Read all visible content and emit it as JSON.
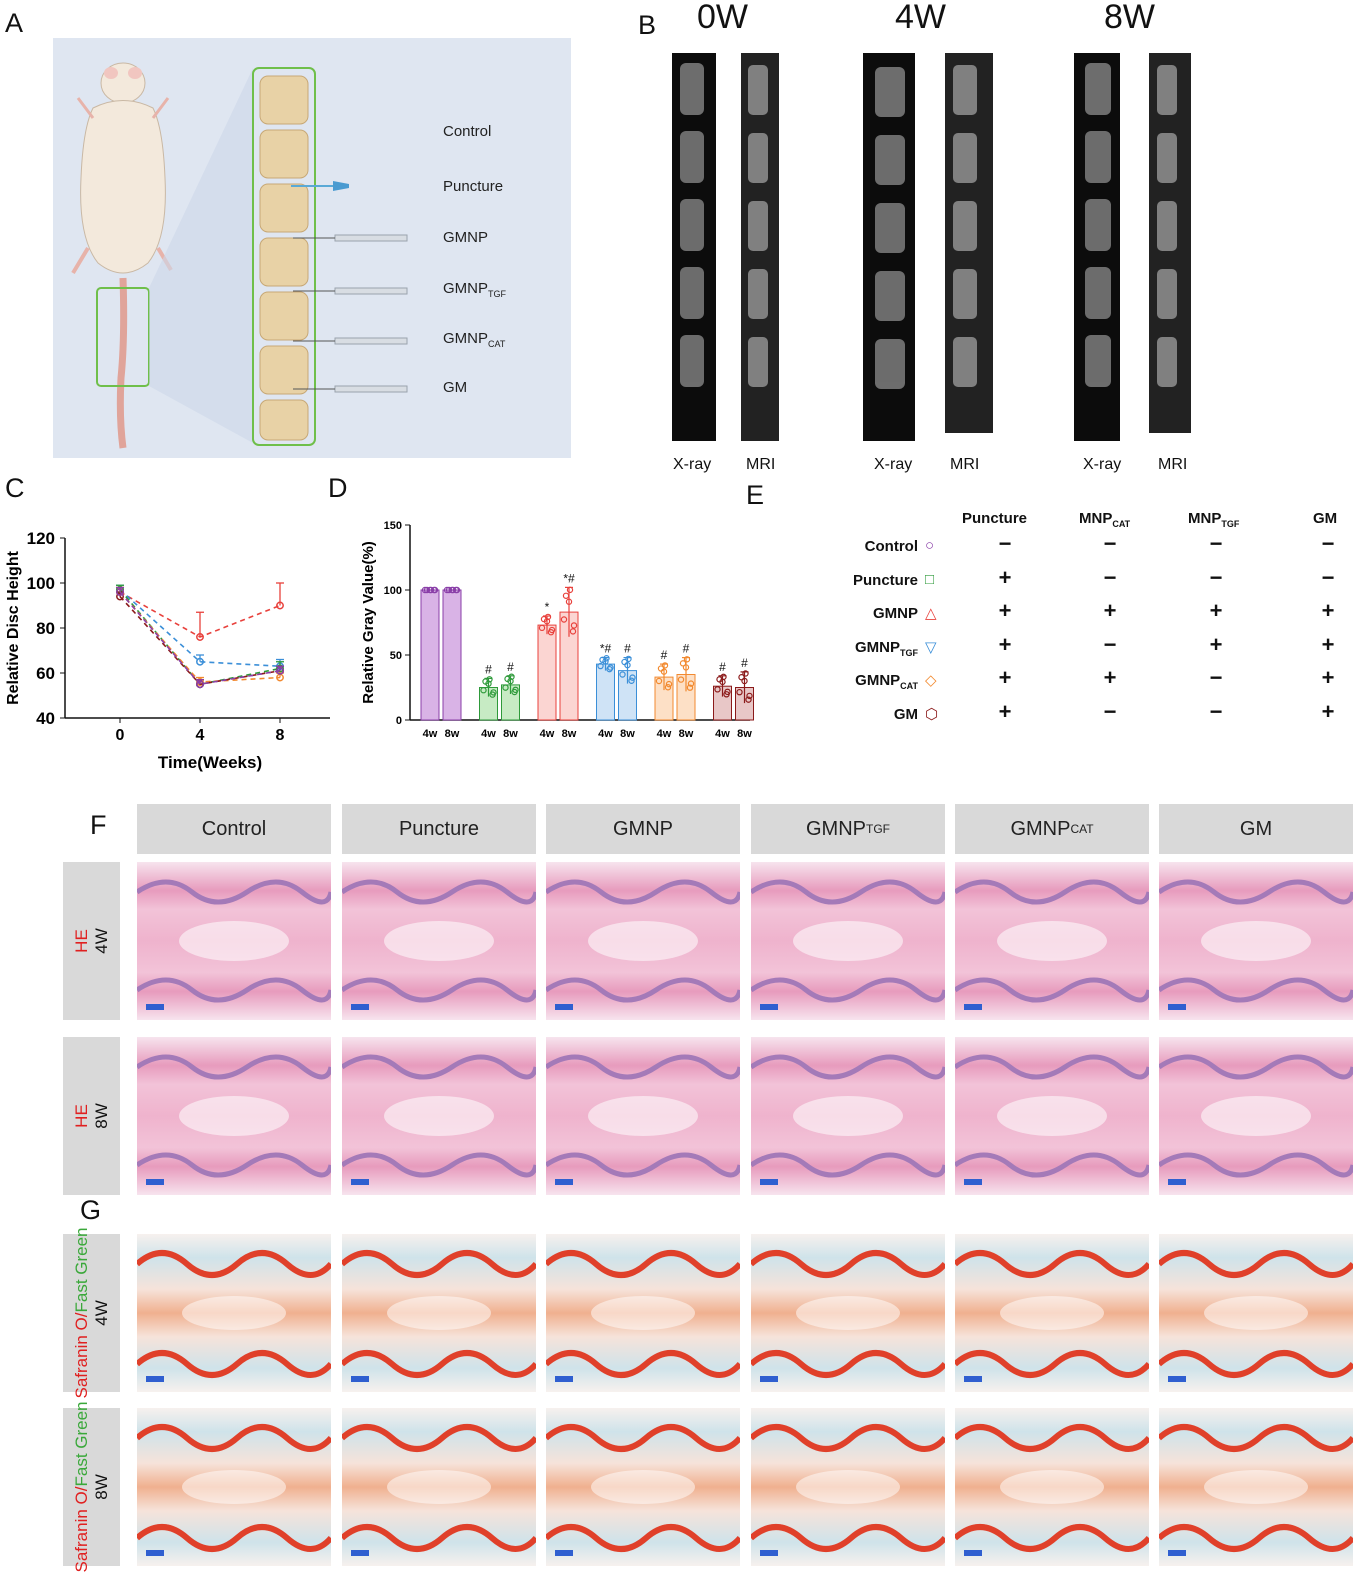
{
  "panel_letters": {
    "a": "A",
    "b": "B",
    "c": "C",
    "d": "D",
    "e": "E",
    "f": "F",
    "g": "G"
  },
  "panelA": {
    "groups": [
      {
        "main": "Control",
        "sub": ""
      },
      {
        "main": "Puncture",
        "sub": ""
      },
      {
        "main": "GMNP",
        "sub": ""
      },
      {
        "main": "GMNP",
        "sub": "TGF"
      },
      {
        "main": "GMNP",
        "sub": "CAT"
      },
      {
        "main": "GM",
        "sub": ""
      }
    ]
  },
  "panelB": {
    "timepoints": [
      "0W",
      "4W",
      "8W"
    ],
    "modalities": [
      "X-ray",
      "MRI"
    ]
  },
  "panelE": {
    "columns": [
      {
        "main": "Puncture",
        "sub": ""
      },
      {
        "main": "MNP",
        "sub": "CAT"
      },
      {
        "main": "MNP",
        "sub": "TGF"
      },
      {
        "main": "GM",
        "sub": ""
      }
    ],
    "rows": [
      {
        "main": "Control",
        "sub": "",
        "marker": "○",
        "color": "#8a3fa8",
        "cells": [
          "−",
          "−",
          "−",
          "−"
        ]
      },
      {
        "main": "Puncture",
        "sub": "",
        "marker": "□",
        "color": "#2e9a3a",
        "cells": [
          "+",
          "−",
          "−",
          "−"
        ]
      },
      {
        "main": "GMNP",
        "sub": "",
        "marker": "△",
        "color": "#e8413c",
        "cells": [
          "+",
          "+",
          "+",
          "+"
        ]
      },
      {
        "main": "GMNP",
        "sub": "TGF",
        "marker": "▽",
        "color": "#3b8fd8",
        "cells": [
          "+",
          "−",
          "+",
          "+"
        ]
      },
      {
        "main": "GMNP",
        "sub": "CAT",
        "marker": "◇",
        "color": "#f28a30",
        "cells": [
          "+",
          "+",
          "−",
          "+"
        ]
      },
      {
        "main": "GM",
        "sub": "",
        "marker": "⬡",
        "color": "#8b1a1a",
        "cells": [
          "+",
          "−",
          "−",
          "+"
        ]
      }
    ]
  },
  "panelF": {
    "headers": [
      {
        "main": "Control",
        "sub": ""
      },
      {
        "main": "Puncture",
        "sub": ""
      },
      {
        "main": "GMNP",
        "sub": ""
      },
      {
        "main": "GMNP",
        "sub": "TGF"
      },
      {
        "main": "GMNP",
        "sub": "CAT"
      },
      {
        "main": "GM",
        "sub": ""
      }
    ],
    "rows": [
      {
        "stain": "HE",
        "time": "4W"
      },
      {
        "stain": "HE",
        "time": "8W"
      }
    ]
  },
  "panelG": {
    "rows": [
      {
        "stain_red": "Safranin O/",
        "stain_green": "Fast Green",
        "time": "4W"
      },
      {
        "stain_red": "Safranin O/",
        "stain_green": "Fast Green",
        "time": "8W"
      }
    ]
  },
  "chart_data": [
    {
      "type": "line",
      "panel": "C",
      "title": "",
      "xlabel": "Time(Weeks)",
      "ylabel": "Relative Disc Height",
      "x": [
        0,
        4,
        8
      ],
      "x_ticks": [
        "0",
        "4",
        "8"
      ],
      "ylim": [
        40,
        120
      ],
      "y_ticks": [
        "40",
        "60",
        "80",
        "100",
        "120"
      ],
      "series": [
        {
          "color": "#e8413c",
          "values": [
            96,
            76,
            90
          ],
          "err": [
            2,
            11,
            10
          ]
        },
        {
          "color": "#3b8fd8",
          "values": [
            97,
            65,
            63
          ],
          "err": [
            2,
            3,
            3
          ]
        },
        {
          "color": "#2e9a3a",
          "values": [
            97,
            55,
            62
          ],
          "err": [
            2,
            2,
            3
          ]
        },
        {
          "color": "#f28a30",
          "values": [
            96,
            56,
            58
          ],
          "err": [
            2,
            2,
            2
          ]
        },
        {
          "color": "#8b1a1a",
          "values": [
            94,
            55,
            61
          ],
          "err": [
            2,
            2,
            2
          ]
        },
        {
          "color": "#8a3fa8",
          "values": [
            96,
            55,
            61
          ],
          "err": [
            2,
            2,
            2
          ]
        }
      ]
    },
    {
      "type": "bar",
      "panel": "D",
      "title": "",
      "xlabel": "",
      "ylabel": "Relative Gray Value(%)",
      "ylim": [
        0,
        150
      ],
      "y_ticks": [
        "0",
        "50",
        "100",
        "150"
      ],
      "category_labels": [
        "4w",
        "8w",
        "4w",
        "8w",
        "4w",
        "8w",
        "4w",
        "8w",
        "4w",
        "8w",
        "4w",
        "8w"
      ],
      "groups": [
        {
          "color": "#8a3fa8",
          "fill": "#d9b3e6",
          "values": [
            100,
            100
          ],
          "err": [
            0,
            0
          ],
          "annot": [
            "",
            ""
          ]
        },
        {
          "color": "#2e9a3a",
          "fill": "#c7ebc4",
          "values": [
            25,
            27
          ],
          "err": [
            7,
            7
          ],
          "annot": [
            "#",
            "#"
          ]
        },
        {
          "color": "#e8413c",
          "fill": "#fbd5d2",
          "values": [
            73,
            83
          ],
          "err": [
            7,
            19
          ],
          "annot": [
            "*",
            "*#"
          ]
        },
        {
          "color": "#3b8fd8",
          "fill": "#cfe3f6",
          "values": [
            43,
            38
          ],
          "err": [
            5,
            10
          ],
          "annot": [
            "*#",
            "#"
          ]
        },
        {
          "color": "#f28a30",
          "fill": "#fde0c6",
          "values": [
            33,
            35
          ],
          "err": [
            10,
            13
          ],
          "annot": [
            "#",
            "#"
          ]
        },
        {
          "color": "#8b1a1a",
          "fill": "#e8c7c7",
          "values": [
            26,
            25
          ],
          "err": [
            8,
            12
          ],
          "annot": [
            "#",
            "#"
          ]
        }
      ]
    }
  ]
}
